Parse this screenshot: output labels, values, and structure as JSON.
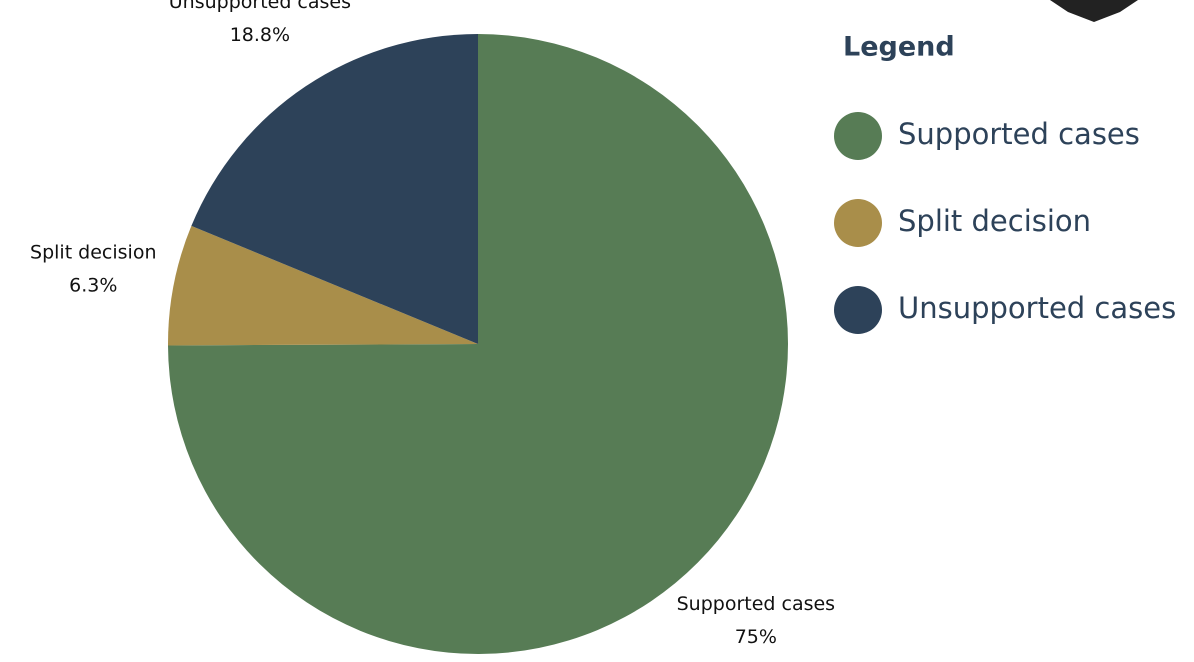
{
  "chart_data": {
    "type": "pie",
    "categories": [
      "Supported cases",
      "Split decision",
      "Unsupported cases"
    ],
    "values": [
      75,
      6.3,
      18.8
    ],
    "value_labels": [
      "75%",
      "6.3%",
      "18.8%"
    ],
    "colors": [
      "#577c55",
      "#a98e4a",
      "#2d4259"
    ],
    "legend_title": "Legend",
    "legend": "right"
  }
}
